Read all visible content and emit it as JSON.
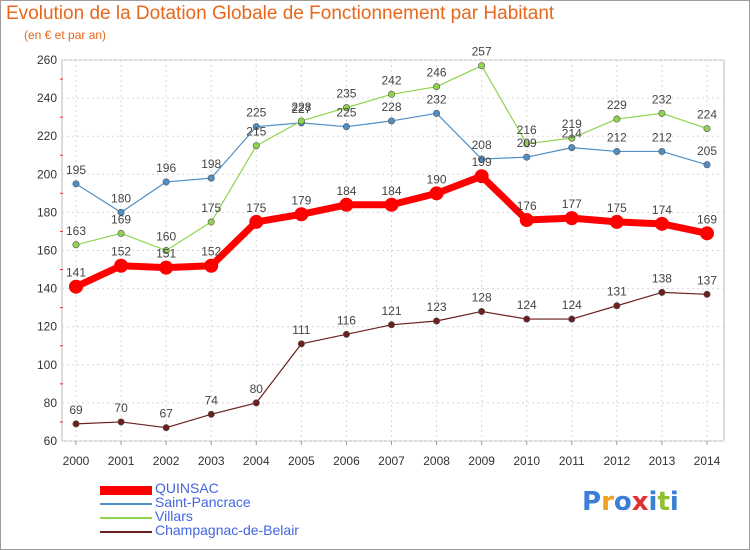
{
  "chart_data": {
    "type": "line",
    "title": "Evolution de la Dotation Globale de Fonctionnement par Habitant",
    "subtitle": "(en € et par an)",
    "xlabel": "",
    "ylabel": "",
    "x": [
      "2000",
      "2001",
      "2002",
      "2003",
      "2004",
      "2005",
      "2006",
      "2007",
      "2008",
      "2009",
      "2010",
      "2011",
      "2012",
      "2013",
      "2014"
    ],
    "ylim": [
      60,
      260
    ],
    "yticks": [
      "60",
      "80",
      "100",
      "120",
      "140",
      "160",
      "180",
      "200",
      "220",
      "240",
      "260"
    ],
    "grid": true,
    "legend_position": "bottom-left",
    "series": [
      {
        "name": "QUINSAC",
        "color": "#ff0000",
        "emphasis": true,
        "values": [
          141,
          152,
          151,
          152,
          175,
          179,
          184,
          184,
          190,
          199,
          176,
          177,
          175,
          174,
          169
        ],
        "labels": [
          "141",
          "152",
          "151",
          "152",
          "175",
          "179",
          "184",
          "184",
          "190",
          "199",
          "176",
          "177",
          "175",
          "174",
          "169"
        ]
      },
      {
        "name": "Saint-Pancrace",
        "color": "#4f8fc6",
        "values": [
          195,
          180,
          196,
          198,
          225,
          227,
          225,
          228,
          232,
          208,
          209,
          214,
          212,
          212,
          205
        ],
        "labels": [
          "195",
          "180",
          "196",
          "198",
          "225",
          "227",
          "225",
          "228",
          "232",
          "208",
          "209",
          "214",
          "212",
          "212",
          "205"
        ]
      },
      {
        "name": "Villars",
        "color": "#8fd44d",
        "values": [
          163,
          169,
          160,
          175,
          215,
          228,
          235,
          242,
          246,
          257,
          216,
          219,
          229,
          232,
          224
        ],
        "labels": [
          "163",
          "169",
          "160",
          "175",
          "215",
          "228",
          "235",
          "242",
          "246",
          "257",
          "216",
          "219",
          "229",
          "232",
          "224"
        ]
      },
      {
        "name": "Champagnac-de-Belair",
        "color": "#6b1f1f",
        "values": [
          69,
          70,
          67,
          74,
          80,
          111,
          116,
          121,
          123,
          128,
          124,
          124,
          131,
          138,
          137
        ],
        "labels": [
          "69",
          "70",
          "67",
          "74",
          "80",
          "111",
          "116",
          "121",
          "123",
          "128",
          "124",
          "124",
          "131",
          "138",
          "137"
        ]
      }
    ]
  },
  "brand": {
    "letters": [
      "P",
      "r",
      "o",
      "x",
      "i",
      "t",
      "i"
    ],
    "colors": [
      "#3a7fd5",
      "#f0a020",
      "#3a7fd5",
      "#e03030",
      "#3a7fd5",
      "#90c030",
      "#3a7fd5"
    ]
  }
}
